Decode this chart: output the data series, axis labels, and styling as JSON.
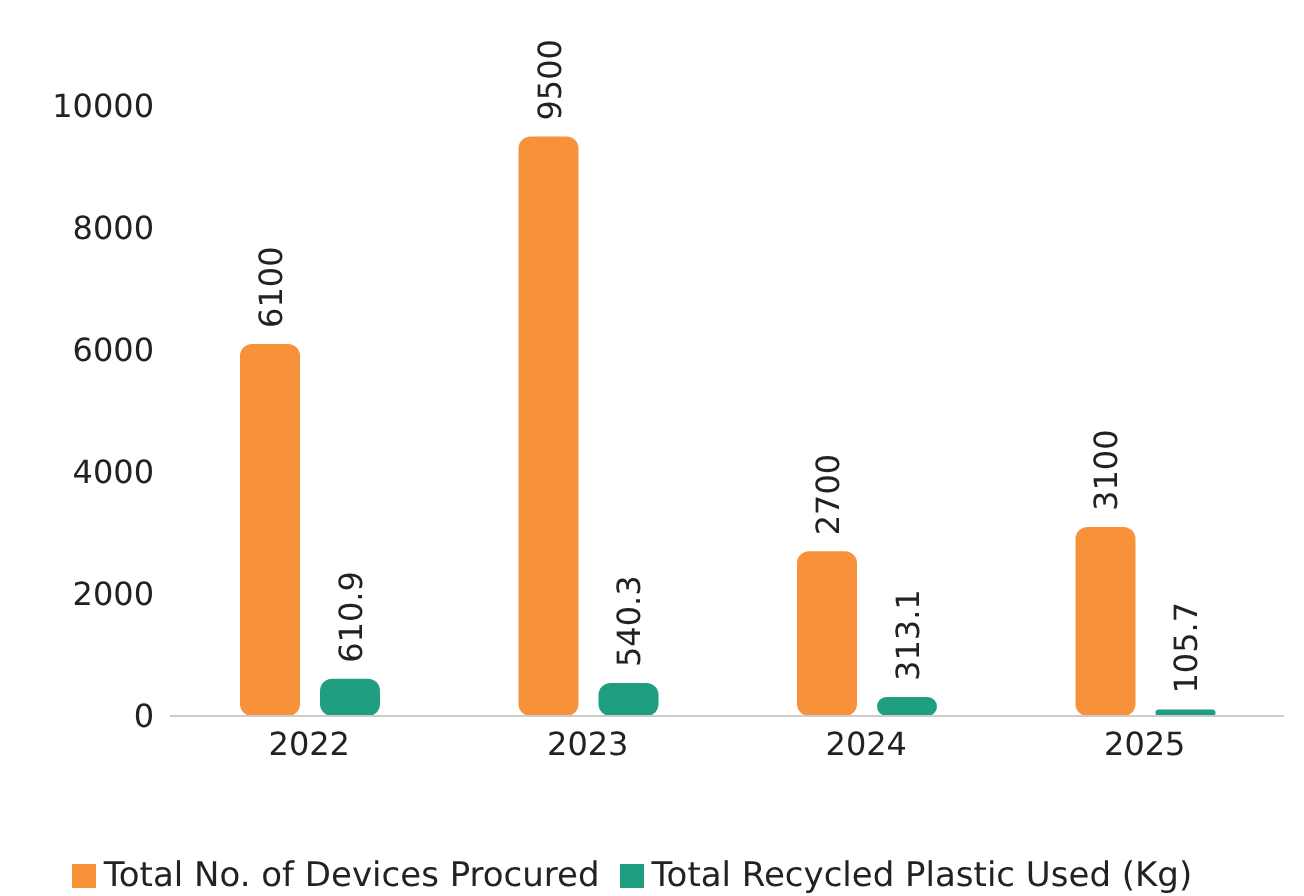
{
  "chart_data": {
    "type": "bar",
    "categories": [
      "2022",
      "2023",
      "2024",
      "2025"
    ],
    "series": [
      {
        "name": "Total No. of Devices Procured",
        "color": "#f7923a",
        "values": [
          6100,
          9500,
          2700,
          3100
        ]
      },
      {
        "name": "Total Recycled Plastic Used (Kg)",
        "color": "#1f9e82",
        "values": [
          610.9,
          540.3,
          313.1,
          105.7
        ]
      }
    ],
    "ylim": [
      0,
      10000
    ],
    "yticks": [
      0,
      2000,
      4000,
      6000,
      8000,
      10000
    ],
    "grid": false,
    "legend": "bottom",
    "data_labels": true
  }
}
